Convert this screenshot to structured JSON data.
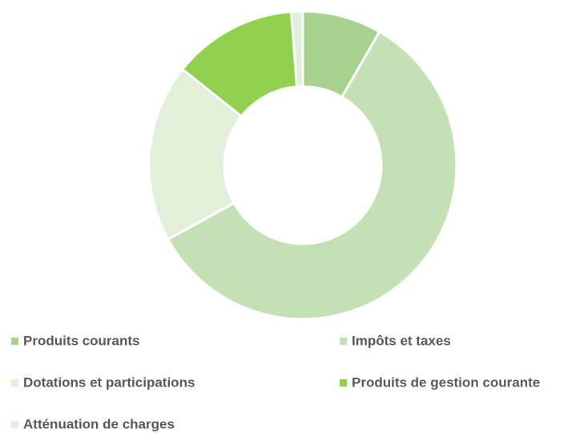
{
  "chart_data": {
    "type": "donut",
    "categories": [
      "Produits courants",
      "Impôts et taxes",
      "Dotations et participations",
      "Produits de gestion courante",
      "Atténuation de charges"
    ],
    "values": [
      8.3,
      58.7,
      18.7,
      13.1,
      1.2
    ],
    "colors": [
      "#a9d18e",
      "#c5e0b4",
      "#e2efda",
      "#92d050",
      "#e2f0d9"
    ],
    "legend": "bottom"
  }
}
